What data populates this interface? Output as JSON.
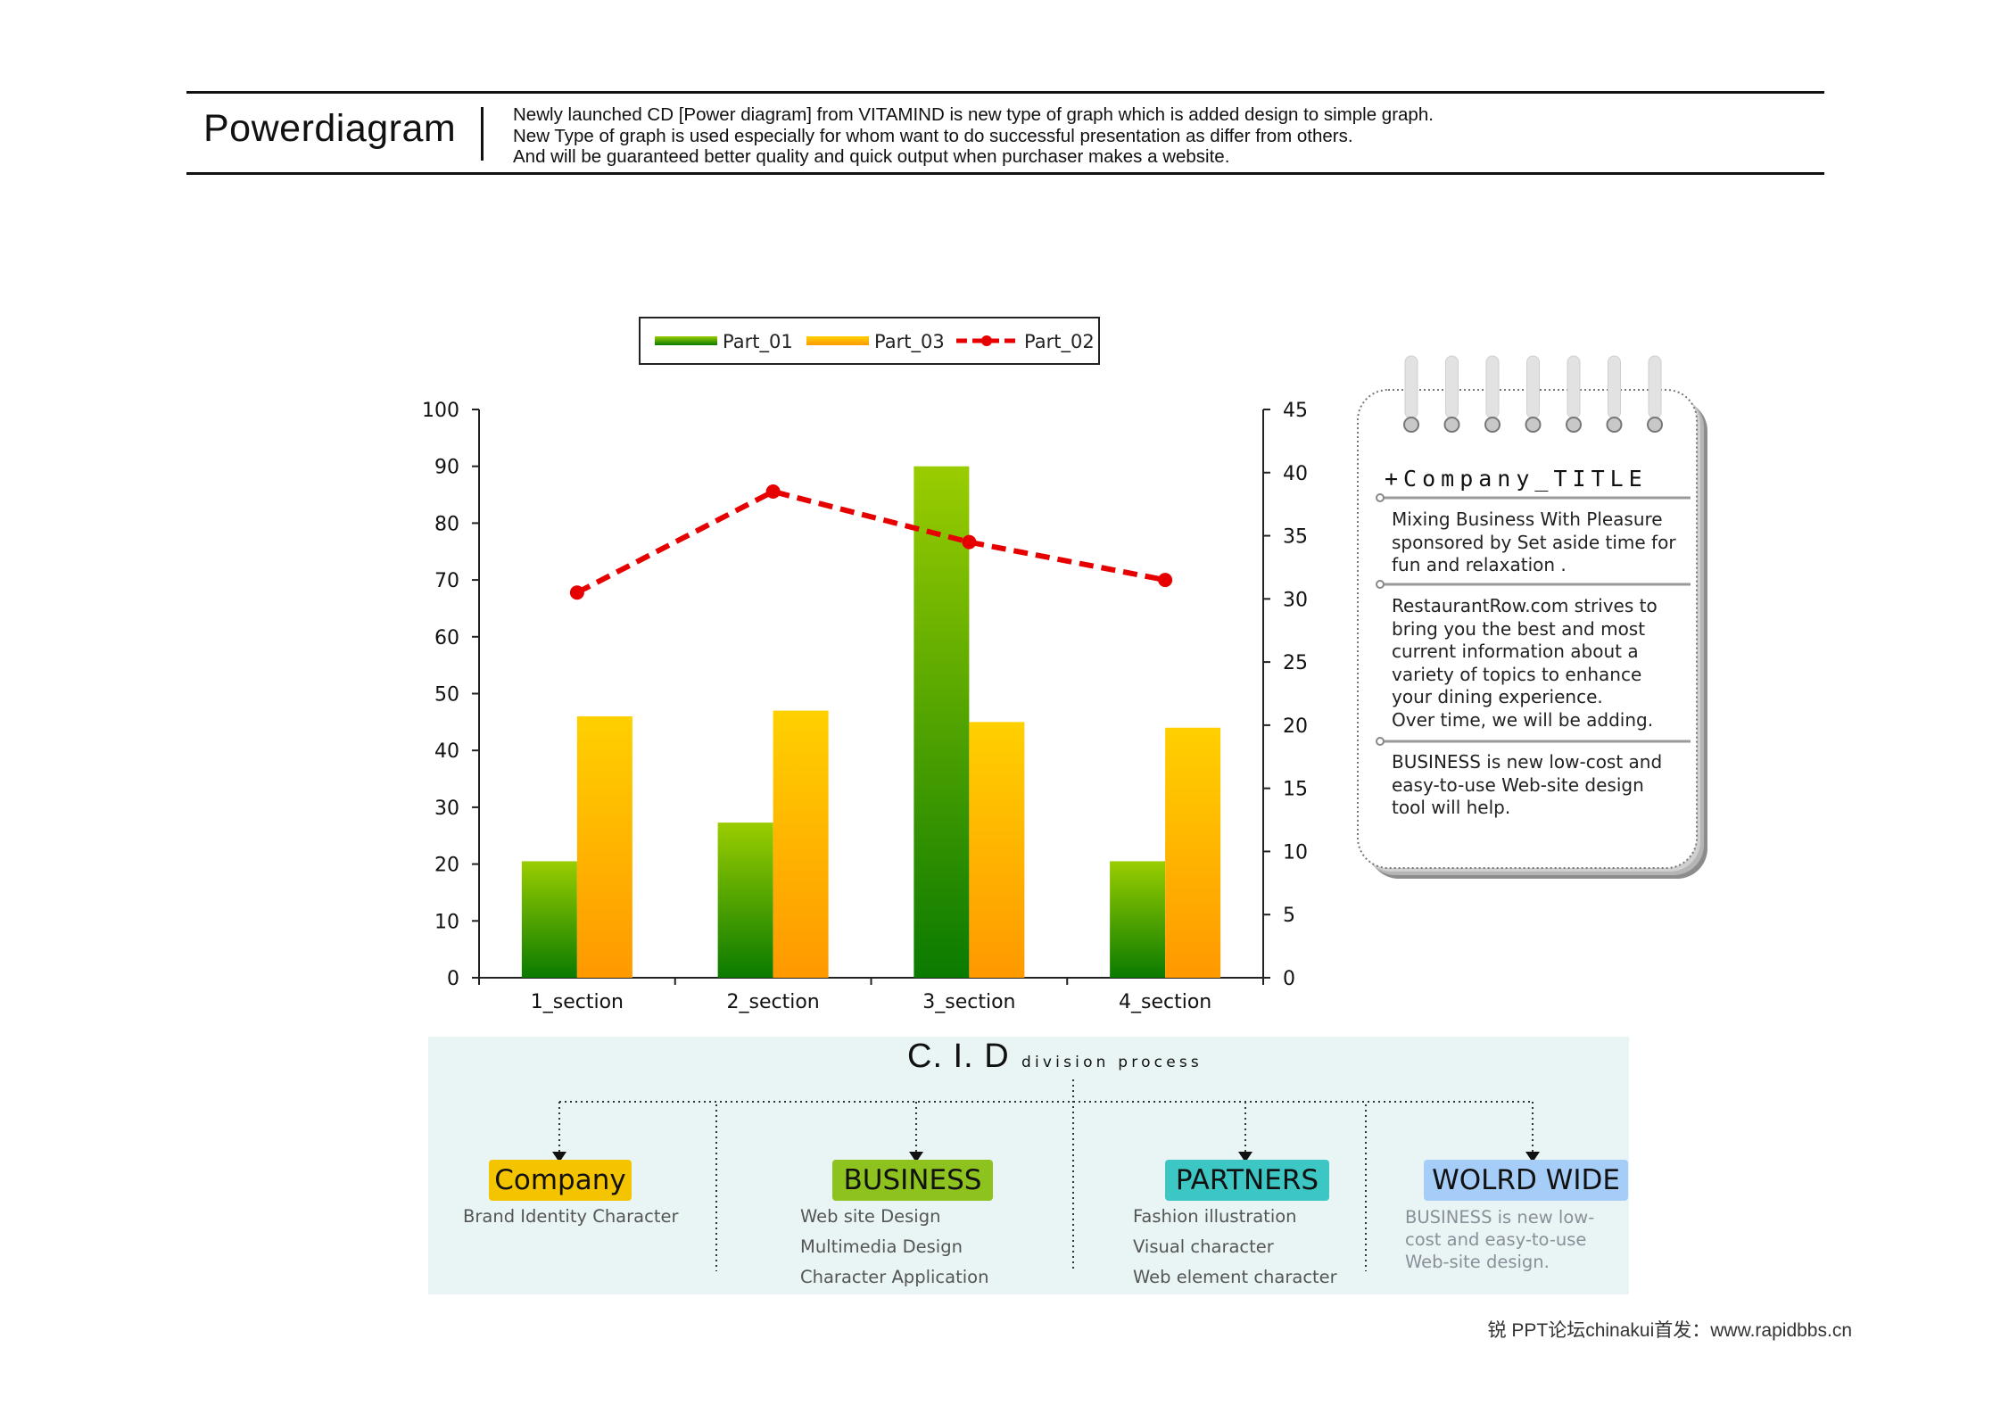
{
  "header": {
    "brand": "Powerdiagram",
    "description": [
      "Newly launched CD [Power diagram] from VITAMIND is new type of graph which is added design to simple graph.",
      "New Type of graph is used especially for whom want to do successful presentation as differ from others.",
      "And will be guaranteed better quality and quick output when purchaser makes a website."
    ]
  },
  "chart_data": {
    "type": "bar",
    "categories": [
      "1_section",
      "2_section",
      "3_section",
      "4_section"
    ],
    "series": [
      {
        "name": "Part_01",
        "type": "bar",
        "axis": "left",
        "values": [
          20.5,
          27.3,
          90,
          20.5
        ],
        "color_top": "#9acd00",
        "color_bottom": "#0a7a00"
      },
      {
        "name": "Part_03",
        "type": "bar",
        "axis": "left",
        "values": [
          46,
          47,
          45,
          44
        ],
        "color_top": "#ffd000",
        "color_bottom": "#ff9900"
      },
      {
        "name": "Part_02",
        "type": "line",
        "axis": "right",
        "values": [
          30.5,
          38.5,
          34.5,
          31.5
        ],
        "color": "#e60000",
        "dashed": true
      }
    ],
    "legend_order": [
      "Part_01",
      "Part_03",
      "Part_02"
    ],
    "legend_position": "top",
    "yleft_ticks": [
      0,
      10,
      20,
      30,
      40,
      50,
      60,
      70,
      80,
      90,
      100
    ],
    "yright_ticks": [
      0,
      5,
      10,
      15,
      20,
      25,
      30,
      35,
      40,
      45
    ],
    "yleft_lim": [
      0,
      100
    ],
    "yright_lim": [
      0,
      45
    ],
    "grid": false
  },
  "notepad": {
    "heading": "+Company_TITLE",
    "paragraphs": [
      [
        "Mixing Business With Pleasure",
        "sponsored by Set aside time for",
        "fun and relaxation ."
      ],
      [
        "RestaurantRow.com strives to",
        "bring you the best and most",
        "current information about a",
        "variety of topics to enhance",
        "your dining experience.",
        "Over time, we will be adding."
      ],
      [
        "BUSINESS is new low-cost and",
        "easy-to-use Web-site design",
        "tool will help."
      ]
    ]
  },
  "cid": {
    "title": "C. I. D",
    "subtitle": "division process",
    "columns": [
      {
        "label": "Company",
        "color": "#f5c400",
        "items": [
          "Brand Identity Character"
        ]
      },
      {
        "label": "BUSINESS",
        "color": "#8dc21f",
        "items": [
          "Web site Design",
          "Multimedia Design",
          "Character Application"
        ]
      },
      {
        "label": "PARTNERS",
        "color": "#3cc6c4",
        "items": [
          "Fashion illustration",
          "Visual character",
          "Web element character"
        ]
      },
      {
        "label": "WOLRD WIDE",
        "color": "#a6cdf7",
        "note": [
          "BUSINESS is new low-",
          "cost and easy-to-use",
          "Web-site design."
        ]
      }
    ]
  },
  "footer": {
    "text": "锐  PPT论坛chinakui首发：www.rapidbbs.cn"
  }
}
